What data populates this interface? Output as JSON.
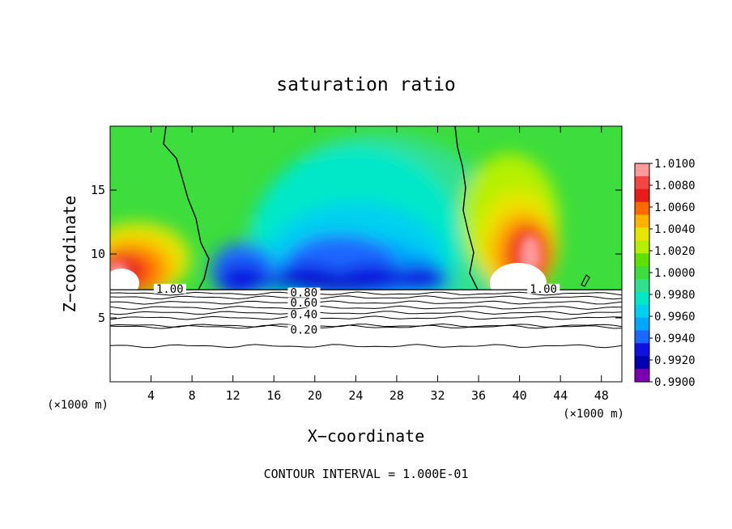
{
  "chart_data": {
    "type": "heatmap",
    "title": "saturation ratio",
    "xlabel": "X−coordinate",
    "ylabel": "Z−coordinate",
    "x_unit_left": "(×1000 m)",
    "x_unit_right": "(×1000 m)",
    "xlim": [
      0,
      50
    ],
    "ylim": [
      0,
      20
    ],
    "x_ticks": [
      4,
      8,
      12,
      16,
      20,
      24,
      28,
      32,
      36,
      40,
      44,
      48
    ],
    "y_ticks": [
      5,
      10,
      15
    ],
    "colorbar": {
      "ticks": [
        "1.0100",
        "1.0080",
        "1.0060",
        "1.0040",
        "1.0020",
        "1.0000",
        "0.9980",
        "0.9960",
        "0.9940",
        "0.9920",
        "0.9900"
      ],
      "colors": [
        "#ff9a9a",
        "#f44444",
        "#e81b1b",
        "#ff6a00",
        "#ffb300",
        "#e7e600",
        "#b5f000",
        "#60e000",
        "#3cdd3c",
        "#30e090",
        "#00e8c8",
        "#00d0f0",
        "#00a6ff",
        "#1a68ff",
        "#1010e0",
        "#0000b0",
        "#7a00b0"
      ],
      "range": [
        0.99,
        1.01
      ]
    },
    "contour_interval_text": "CONTOUR INTERVAL = 1.000E-01",
    "contour_labels": [
      {
        "text": "1.00",
        "x": 4.5,
        "y": 7.1
      },
      {
        "text": "1.00",
        "x": 41.0,
        "y": 7.1
      },
      {
        "text": "0.80",
        "x": 17.6,
        "y": 6.8
      },
      {
        "text": "0.60",
        "x": 17.6,
        "y": 6.0
      },
      {
        "text": "0.40",
        "x": 17.6,
        "y": 5.1
      },
      {
        "text": "0.20",
        "x": 17.6,
        "y": 3.9
      }
    ],
    "contour_levels_below": [
      {
        "level": 0.9,
        "z": 6.9
      },
      {
        "level": 0.8,
        "z": 6.6
      },
      {
        "level": 0.7,
        "z": 6.2
      },
      {
        "level": 0.6,
        "z": 5.8
      },
      {
        "level": 0.5,
        "z": 5.4
      },
      {
        "level": 0.4,
        "z": 5.0
      },
      {
        "level": 0.3,
        "z": 4.4
      },
      {
        "level": 0.2,
        "z": 4.3
      },
      {
        "level": 0.1,
        "z": 2.8
      }
    ],
    "cloud_base_z": 7.2,
    "saturation_boundary_lines": [
      {
        "x_top": 5.5,
        "x_bottom": 9.0
      },
      {
        "x_top": 34.0,
        "x_bottom": 36.0
      }
    ],
    "supersaturated_regions": [
      {
        "x_center": 1.0,
        "z_base": 7.2,
        "z_top": 12.0,
        "peak": 1.0072
      },
      {
        "x_center": 40.5,
        "z_base": 7.2,
        "z_top": 15.5,
        "peak": 1.0066
      }
    ],
    "subsaturated_region": {
      "x_range": [
        9,
        34
      ],
      "z_base": 7.2,
      "z_top": 15.5,
      "min": 0.9904
    }
  }
}
